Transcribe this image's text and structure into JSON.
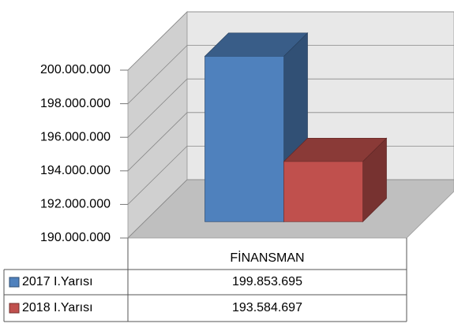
{
  "chart_data": {
    "type": "bar3d",
    "categories": [
      "FİNANSMAN"
    ],
    "series": [
      {
        "name": "2017 I.Yarısı",
        "color": "#4f81bd",
        "values": [
          199853695
        ],
        "value_labels": [
          "199.853.695"
        ]
      },
      {
        "name": "2018 I.Yarısı",
        "color": "#c0504d",
        "values": [
          193584697
        ],
        "value_labels": [
          "193.584.697"
        ]
      }
    ],
    "ylim": [
      190000000,
      200000000
    ],
    "yticks": [
      {
        "value": 190000000,
        "label": "190.000.000"
      },
      {
        "value": 192000000,
        "label": "192.000.000"
      },
      {
        "value": 194000000,
        "label": "194.000.000"
      },
      {
        "value": 196000000,
        "label": "196.000.000"
      },
      {
        "value": 198000000,
        "label": "198.000.000"
      },
      {
        "value": 200000000,
        "label": "200.000.000"
      }
    ],
    "grid": true
  }
}
